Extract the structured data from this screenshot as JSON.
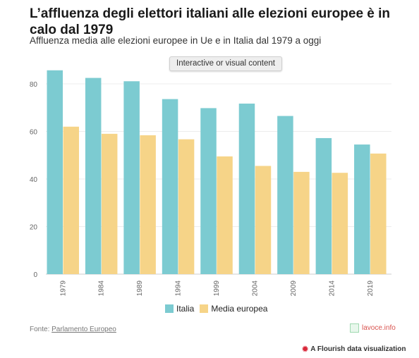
{
  "header": {
    "title": "L’affluenza degli elettori italiani alle elezioni europee è in calo dal 1979",
    "subtitle": "Affluenza media alle elezioni europee in Ue e in Italia dal 1979 a oggi",
    "interactive_label": "Interactive or visual content"
  },
  "chart_data": {
    "type": "bar",
    "categories": [
      "1979",
      "1984",
      "1989",
      "1994",
      "1999",
      "2004",
      "2009",
      "2014",
      "2019"
    ],
    "series": [
      {
        "name": "Italia",
        "color": "#7ccbd1",
        "values": [
          85.7,
          82.5,
          81.1,
          73.6,
          69.8,
          71.7,
          66.5,
          57.2,
          54.5
        ]
      },
      {
        "name": "Media europea",
        "color": "#f6d488",
        "values": [
          62.0,
          59.0,
          58.4,
          56.7,
          49.5,
          45.5,
          43.0,
          42.6,
          50.7
        ]
      }
    ],
    "yticks": [
      0,
      20,
      40,
      60,
      80
    ],
    "ylim": [
      0,
      88
    ],
    "grid": true,
    "legend_position": "bottom-center"
  },
  "footer": {
    "source_prefix": "Fonte: ",
    "source_link": "Parlamento Europeo",
    "logo_text": "lavoce.info",
    "flourish_text": "A Flourish data visualization"
  }
}
